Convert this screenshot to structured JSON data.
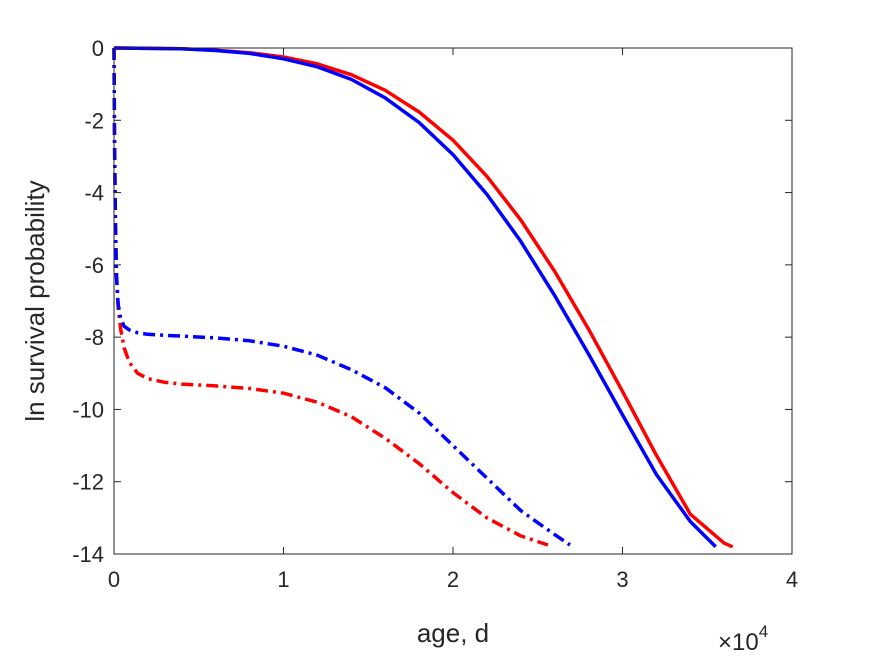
{
  "chart_data": {
    "type": "line",
    "title": "",
    "xlabel": "age, d",
    "ylabel": "ln survival probability",
    "x_exponent_label": {
      "base": "×10",
      "power": "4"
    },
    "xlim": [
      0,
      40000
    ],
    "ylim": [
      -14,
      0
    ],
    "xticks": [
      0,
      10000,
      20000,
      30000,
      40000
    ],
    "xtick_labels": [
      "0",
      "1",
      "2",
      "3",
      "4"
    ],
    "yticks": [
      0,
      -2,
      -4,
      -6,
      -8,
      -10,
      -12,
      -14
    ],
    "ytick_labels": [
      "0",
      "-2",
      "-4",
      "-6",
      "-8",
      "-10",
      "-12",
      "-14"
    ],
    "grid": false,
    "legend": "none",
    "series": [
      {
        "color": "#ff0000",
        "style": "solid",
        "x": [
          0,
          2000,
          4000,
          6000,
          8000,
          10000,
          12000,
          14000,
          16000,
          18000,
          20000,
          22000,
          24000,
          26000,
          28000,
          30000,
          32000,
          34000,
          36000,
          36500
        ],
        "y": [
          0,
          -0.01,
          -0.02,
          -0.06,
          -0.13,
          -0.25,
          -0.44,
          -0.74,
          -1.17,
          -1.77,
          -2.55,
          -3.55,
          -4.76,
          -6.18,
          -7.78,
          -9.5,
          -11.27,
          -12.9,
          -13.7,
          -13.8
        ]
      },
      {
        "color": "#0000ff",
        "style": "solid",
        "x": [
          0,
          2000,
          4000,
          6000,
          8000,
          10000,
          12000,
          14000,
          16000,
          18000,
          20000,
          22000,
          24000,
          26000,
          28000,
          30000,
          32000,
          34000,
          35500
        ],
        "y": [
          0,
          -0.01,
          -0.02,
          -0.07,
          -0.15,
          -0.3,
          -0.52,
          -0.87,
          -1.38,
          -2.06,
          -2.95,
          -4.05,
          -5.35,
          -6.85,
          -8.47,
          -10.15,
          -11.8,
          -13.1,
          -13.8
        ]
      },
      {
        "color": "#ff0000",
        "style": "dashdot",
        "x": [
          0,
          30,
          80,
          150,
          250,
          400,
          600,
          900,
          1400,
          2000,
          3000,
          4000,
          6000,
          8000,
          10000,
          12000,
          14000,
          16000,
          18000,
          20000,
          22000,
          24000,
          25600
        ],
        "y": [
          0,
          -2.5,
          -4.8,
          -6.3,
          -7.2,
          -7.8,
          -8.3,
          -8.7,
          -9.0,
          -9.15,
          -9.25,
          -9.3,
          -9.35,
          -9.42,
          -9.55,
          -9.8,
          -10.2,
          -10.8,
          -11.5,
          -12.3,
          -13.0,
          -13.5,
          -13.75
        ]
      },
      {
        "color": "#0000ff",
        "style": "dashdot",
        "x": [
          0,
          30,
          80,
          150,
          250,
          400,
          600,
          900,
          1400,
          2000,
          3000,
          4000,
          6000,
          8000,
          10000,
          12000,
          14000,
          16000,
          18000,
          20000,
          22000,
          24000,
          25500,
          26900
        ],
        "y": [
          0,
          -2.5,
          -4.8,
          -6.3,
          -7.1,
          -7.5,
          -7.7,
          -7.8,
          -7.88,
          -7.92,
          -7.95,
          -7.97,
          -8.02,
          -8.1,
          -8.25,
          -8.5,
          -8.9,
          -9.4,
          -10.1,
          -11.0,
          -11.9,
          -12.8,
          -13.3,
          -13.75
        ]
      }
    ]
  }
}
